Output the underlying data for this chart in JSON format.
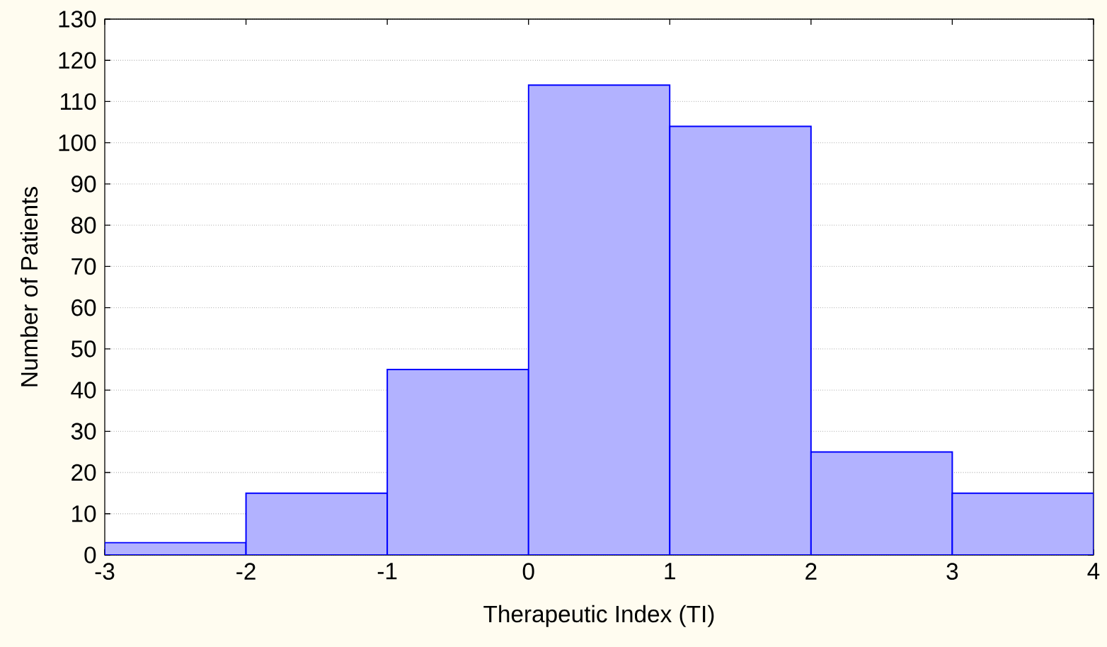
{
  "chart_data": {
    "type": "histogram",
    "xlabel": "Therapeutic Index (TI)",
    "ylabel": "Number of Patients",
    "bins": [
      -3,
      -2,
      -1,
      0,
      1,
      2,
      3,
      4
    ],
    "values": [
      3,
      15,
      45,
      114,
      104,
      25,
      15
    ],
    "color": "#0000ff",
    "xlim": [
      -3,
      4
    ],
    "xticks": [
      -3,
      -2,
      -1,
      0,
      1,
      2,
      3,
      4
    ],
    "ylim": [
      0,
      130
    ],
    "yticks": [
      0,
      10,
      20,
      30,
      40,
      50,
      60,
      70,
      80,
      90,
      100,
      110,
      120,
      130
    ],
    "grid": "y"
  }
}
